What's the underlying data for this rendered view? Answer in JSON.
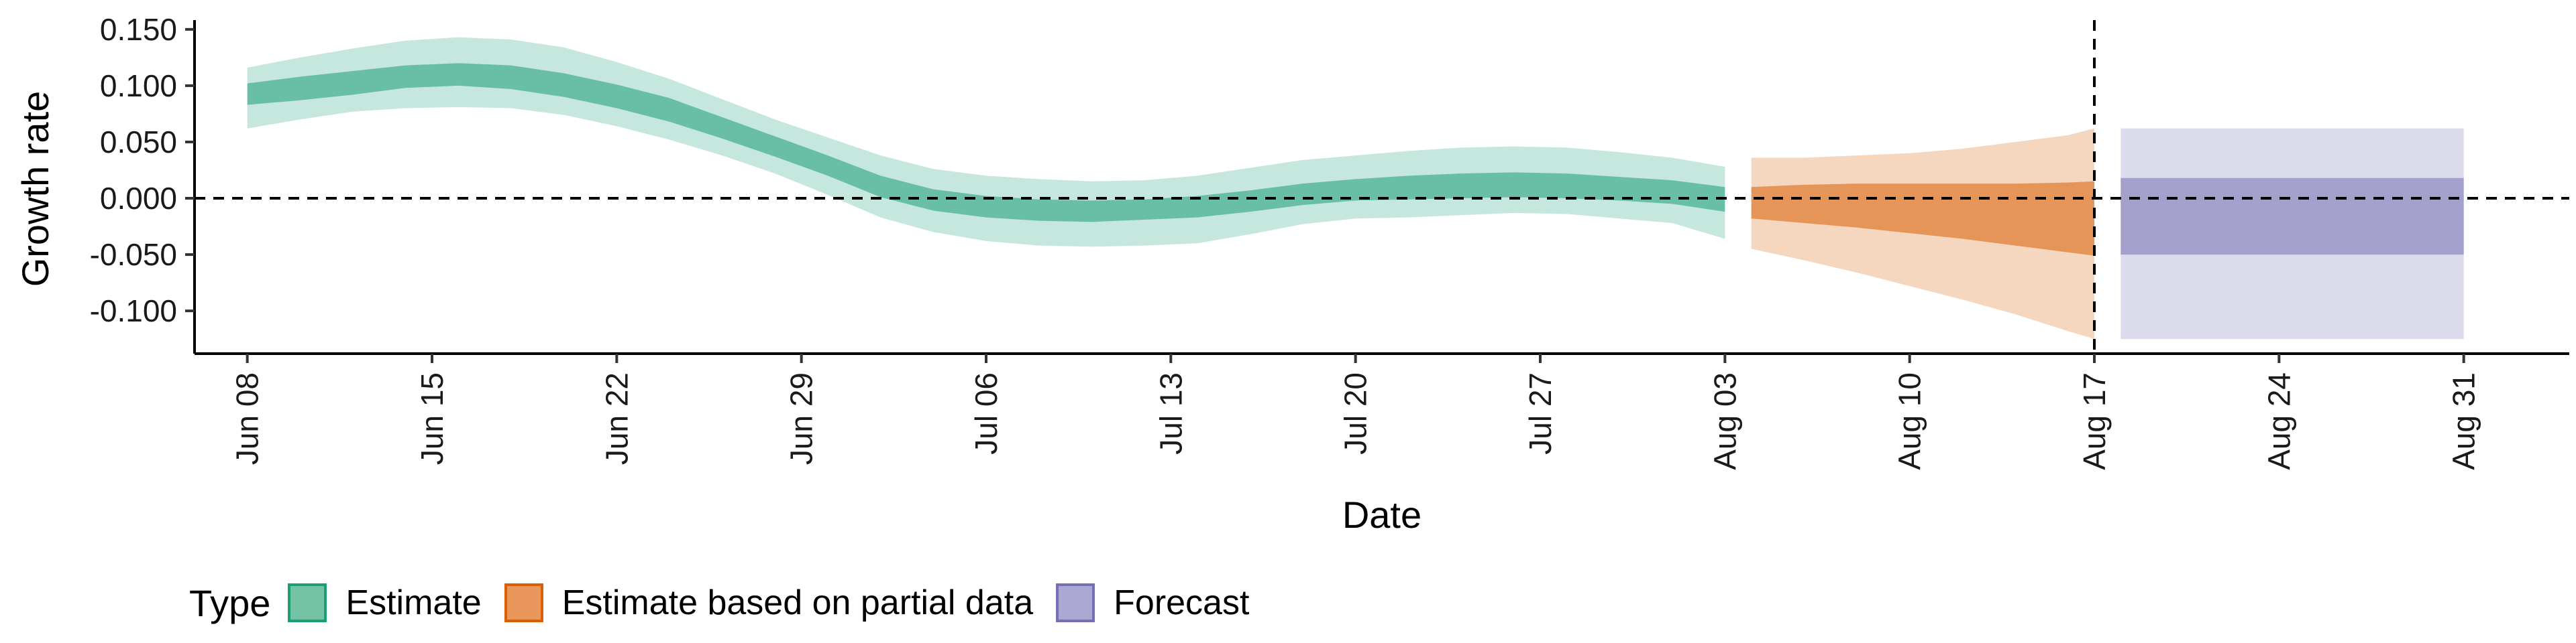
{
  "chart_data": {
    "type": "area",
    "xlabel": "Date",
    "ylabel": "Growth rate",
    "ylim": [
      -0.138,
      0.163
    ],
    "xlim": [
      "2021-06-06",
      "2021-09-04"
    ],
    "y_ticks": [
      "0.150",
      "0.100",
      "0.050",
      "0.000",
      "-0.050",
      "-0.100"
    ],
    "y_tick_values": [
      0.15,
      0.1,
      0.05,
      0.0,
      -0.05,
      -0.1
    ],
    "x_ticks": [
      "Jun 08",
      "Jun 15",
      "Jun 22",
      "Jun 29",
      "Jul 06",
      "Jul 13",
      "Jul 20",
      "Jul 27",
      "Aug 03",
      "Aug 10",
      "Aug 17",
      "Aug 24",
      "Aug 31"
    ],
    "x_tick_dates": [
      "2021-06-08",
      "2021-06-15",
      "2021-06-22",
      "2021-06-29",
      "2021-07-06",
      "2021-07-13",
      "2021-07-20",
      "2021-07-27",
      "2021-08-03",
      "2021-08-10",
      "2021-08-17",
      "2021-08-24",
      "2021-08-31"
    ],
    "reference_lines": {
      "horizontal_y": 0.0,
      "vertical_date": "2021-08-17"
    },
    "grid": false,
    "legend": {
      "title": "Type",
      "position": "bottom-left"
    },
    "series": [
      {
        "name": "Estimate",
        "color": "#1b9e77",
        "dates": [
          "2021-06-08",
          "2021-06-10",
          "2021-06-12",
          "2021-06-14",
          "2021-06-16",
          "2021-06-18",
          "2021-06-20",
          "2021-06-22",
          "2021-06-24",
          "2021-06-26",
          "2021-06-28",
          "2021-06-30",
          "2021-07-02",
          "2021-07-04",
          "2021-07-06",
          "2021-07-08",
          "2021-07-10",
          "2021-07-12",
          "2021-07-14",
          "2021-07-16",
          "2021-07-18",
          "2021-07-20",
          "2021-07-22",
          "2021-07-24",
          "2021-07-26",
          "2021-07-28",
          "2021-07-30",
          "2021-08-01",
          "2021-08-03"
        ],
        "lower_90": [
          0.062,
          0.07,
          0.077,
          0.08,
          0.081,
          0.08,
          0.074,
          0.064,
          0.052,
          0.038,
          0.022,
          0.003,
          -0.017,
          -0.03,
          -0.038,
          -0.042,
          -0.043,
          -0.042,
          -0.04,
          -0.032,
          -0.023,
          -0.018,
          -0.017,
          -0.015,
          -0.013,
          -0.014,
          -0.018,
          -0.022,
          -0.036
        ],
        "lower_50": [
          0.083,
          0.087,
          0.092,
          0.098,
          0.1,
          0.097,
          0.09,
          0.08,
          0.068,
          0.053,
          0.037,
          0.02,
          0.001,
          -0.011,
          -0.017,
          -0.02,
          -0.021,
          -0.019,
          -0.017,
          -0.012,
          -0.006,
          -0.002,
          -0.001,
          0.0,
          0.001,
          0.0,
          -0.002,
          -0.005,
          -0.012
        ],
        "upper_50": [
          0.102,
          0.108,
          0.113,
          0.118,
          0.12,
          0.118,
          0.111,
          0.101,
          0.089,
          0.072,
          0.055,
          0.038,
          0.02,
          0.008,
          0.002,
          -0.001,
          -0.002,
          -0.001,
          0.002,
          0.007,
          0.013,
          0.017,
          0.02,
          0.022,
          0.023,
          0.022,
          0.019,
          0.016,
          0.01
        ],
        "upper_90": [
          0.116,
          0.125,
          0.133,
          0.14,
          0.143,
          0.141,
          0.134,
          0.121,
          0.106,
          0.088,
          0.07,
          0.054,
          0.038,
          0.026,
          0.02,
          0.017,
          0.015,
          0.016,
          0.02,
          0.027,
          0.034,
          0.038,
          0.042,
          0.045,
          0.046,
          0.045,
          0.041,
          0.036,
          0.028
        ]
      },
      {
        "name": "Estimate based on partial data",
        "color": "#d95f02",
        "dates": [
          "2021-08-04",
          "2021-08-06",
          "2021-08-08",
          "2021-08-10",
          "2021-08-12",
          "2021-08-14",
          "2021-08-16",
          "2021-08-17"
        ],
        "lower_90": [
          -0.045,
          -0.055,
          -0.066,
          -0.078,
          -0.09,
          -0.103,
          -0.118,
          -0.125
        ],
        "lower_50": [
          -0.018,
          -0.022,
          -0.026,
          -0.031,
          -0.036,
          -0.042,
          -0.048,
          -0.051
        ],
        "upper_50": [
          0.01,
          0.012,
          0.013,
          0.013,
          0.013,
          0.013,
          0.014,
          0.015
        ],
        "upper_90": [
          0.036,
          0.036,
          0.038,
          0.04,
          0.044,
          0.05,
          0.056,
          0.062
        ]
      },
      {
        "name": "Forecast",
        "color": "#7570b3",
        "dates": [
          "2021-08-18",
          "2021-08-31"
        ],
        "lower_90": [
          -0.125,
          -0.125
        ],
        "lower_50": [
          -0.05,
          -0.05
        ],
        "upper_50": [
          0.018,
          0.018
        ],
        "upper_90": [
          0.062,
          0.062
        ]
      }
    ]
  }
}
